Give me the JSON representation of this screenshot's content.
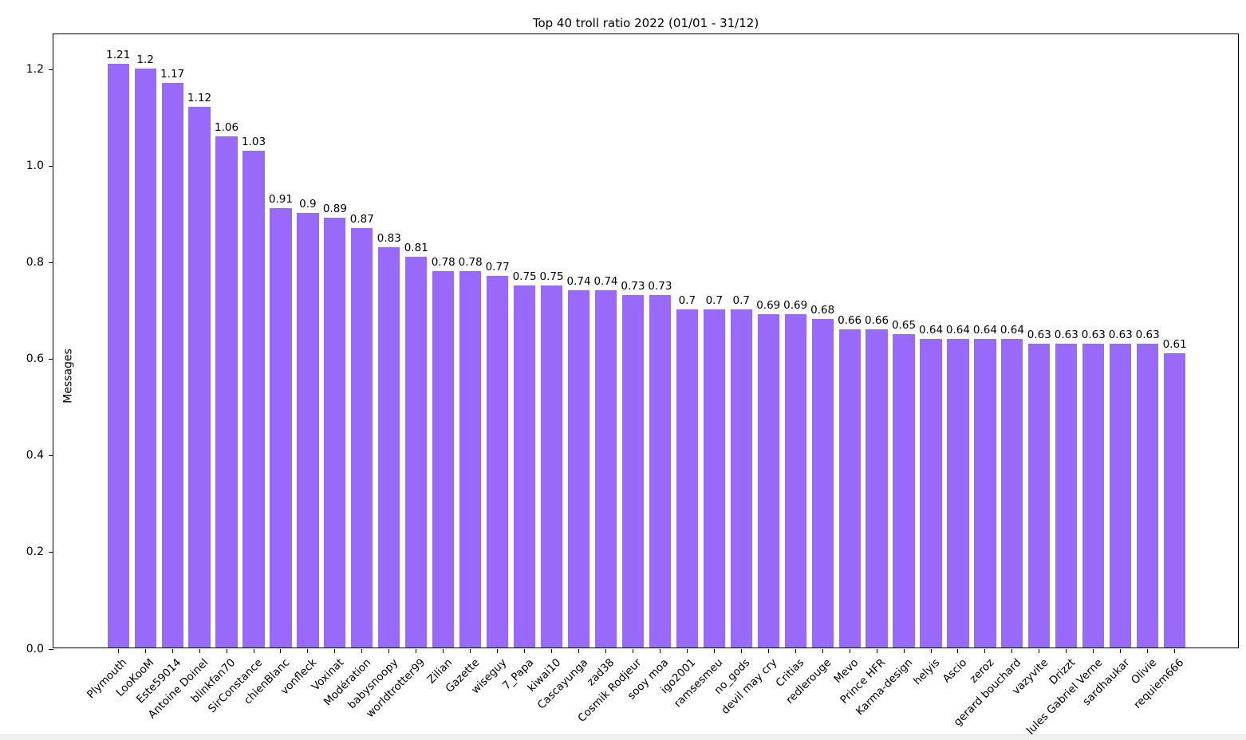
{
  "chart_data": {
    "type": "bar",
    "title": "Top 40 troll ratio 2022 (01/01 - 31/12)",
    "xlabel": "",
    "ylabel": "Messages",
    "categories": [
      "Plymouth",
      "LooKooM",
      "Este59014",
      "Antoine Doinel",
      "blinkfan70",
      "SirConstance",
      "chienBlanc",
      "vonfleck",
      "Voxinat",
      "Modération",
      "babysnoopy",
      "worldtrotter99",
      "Zilian",
      "Gazette",
      "wiseguy",
      "7_Papa",
      "kiwai10",
      "Cascayunga",
      "zad38",
      "Cosmik Rodjeur",
      "sooy moa",
      "igo2001",
      "ramsesmeu",
      "no_gods",
      "devil may cry",
      "Critias",
      "redlerouge",
      "Mevo",
      "Prince HFR",
      "Karma-design",
      "helyis",
      "Ascio",
      "zeroz",
      "gerard bouchard",
      "vazyvite",
      "Drizzt",
      "Jules Gabriel Verne",
      "sardhaukar",
      "Olivie",
      "requiem666"
    ],
    "values": [
      1.21,
      1.2,
      1.17,
      1.12,
      1.06,
      1.03,
      0.91,
      0.9,
      0.89,
      0.87,
      0.83,
      0.81,
      0.78,
      0.78,
      0.77,
      0.75,
      0.75,
      0.74,
      0.74,
      0.73,
      0.73,
      0.7,
      0.7,
      0.7,
      0.69,
      0.69,
      0.68,
      0.66,
      0.66,
      0.65,
      0.64,
      0.64,
      0.64,
      0.64,
      0.63,
      0.63,
      0.63,
      0.63,
      0.63,
      0.61
    ],
    "value_labels_shown": true,
    "bar_color": "#9969fa",
    "y_ticks": [
      0.0,
      0.2,
      0.4,
      0.6,
      0.8,
      1.0,
      1.2
    ],
    "y_tick_labels": [
      "0.0",
      "0.2",
      "0.4",
      "0.6",
      "0.8",
      "1.0",
      "1.2"
    ],
    "ylim": [
      0,
      1.274
    ],
    "grid": false,
    "legend_position": "none",
    "x_tick_rotation_deg": 45
  },
  "page": {
    "background_color": "#ffffff",
    "footer_strip_color": "#f0f0f1"
  }
}
